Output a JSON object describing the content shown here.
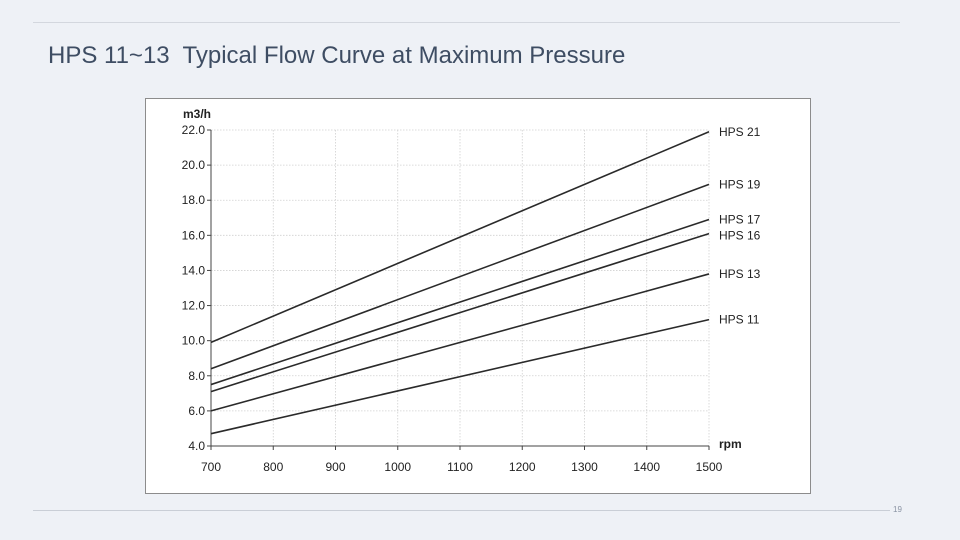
{
  "slide": {
    "title": "HPS 11~13  Typical Flow Curve at Maximum Pressure",
    "page_number": "19"
  },
  "chart_data": {
    "type": "line",
    "title": "",
    "xlabel": "rpm",
    "ylabel": "m3/h",
    "xlim": [
      700,
      1500
    ],
    "ylim": [
      4.0,
      22.0
    ],
    "x_ticks": [
      700,
      800,
      900,
      1000,
      1100,
      1200,
      1300,
      1400,
      1500
    ],
    "y_ticks": [
      "4.0",
      "6.0",
      "8.0",
      "10.0",
      "12.0",
      "14.0",
      "16.0",
      "18.0",
      "20.0",
      "22.0"
    ],
    "grid": true,
    "line_color": "#2a2a2a",
    "grid_color": "#d0d0d0",
    "series": [
      {
        "name": "HPS 21",
        "x": [
          700,
          1500
        ],
        "y": [
          9.9,
          21.9
        ]
      },
      {
        "name": "HPS 19",
        "x": [
          700,
          1500
        ],
        "y": [
          8.4,
          18.9
        ]
      },
      {
        "name": "HPS 17",
        "x": [
          700,
          1500
        ],
        "y": [
          7.5,
          16.9
        ]
      },
      {
        "name": "HPS 16",
        "x": [
          700,
          1500
        ],
        "y": [
          7.1,
          16.1
        ]
      },
      {
        "name": "HPS 13",
        "x": [
          700,
          1500
        ],
        "y": [
          6.0,
          13.8
        ]
      },
      {
        "name": "HPS 11",
        "x": [
          700,
          1500
        ],
        "y": [
          4.7,
          11.2
        ]
      }
    ]
  }
}
